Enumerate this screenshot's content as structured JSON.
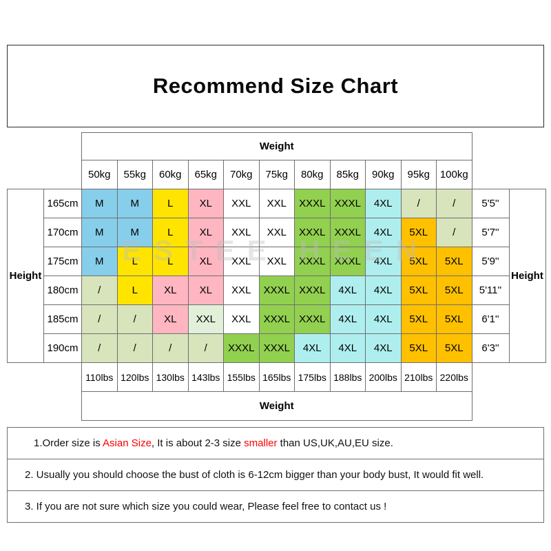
{
  "chart_data": {
    "type": "table",
    "title": "Recommend Size Chart",
    "top_header": "Weight",
    "bottom_header": "Weight",
    "left_header": "Height",
    "right_header": "Height",
    "columns_kg": [
      "50kg",
      "55kg",
      "60kg",
      "65kg",
      "70kg",
      "75kg",
      "80kg",
      "85kg",
      "90kg",
      "95kg",
      "100kg"
    ],
    "columns_lbs": [
      "110lbs",
      "120lbs",
      "130lbs",
      "143lbs",
      "155lbs",
      "165lbs",
      "175lbs",
      "188lbs",
      "200lbs",
      "210lbs",
      "220lbs"
    ],
    "rows_cm": [
      "165cm",
      "170cm",
      "175cm",
      "180cm",
      "185cm",
      "190cm"
    ],
    "rows_ft": [
      "5'5''",
      "5'7''",
      "5'9''",
      "5'11''",
      "6'1''",
      "6'3''"
    ],
    "matrix": [
      [
        [
          "M",
          "blue"
        ],
        [
          "M",
          "blue"
        ],
        [
          "L",
          "yellow"
        ],
        [
          "XL",
          "pink"
        ],
        [
          "XXL",
          "white"
        ],
        [
          "XXL",
          "white"
        ],
        [
          "XXXL",
          "green"
        ],
        [
          "XXXL",
          "green"
        ],
        [
          "4XL",
          "cyan"
        ],
        [
          "/",
          "slash"
        ],
        [
          "/",
          "slash"
        ]
      ],
      [
        [
          "M",
          "blue"
        ],
        [
          "M",
          "blue"
        ],
        [
          "L",
          "yellow"
        ],
        [
          "XL",
          "pink"
        ],
        [
          "XXL",
          "white"
        ],
        [
          "XXL",
          "white"
        ],
        [
          "XXXL",
          "green"
        ],
        [
          "XXXL",
          "green"
        ],
        [
          "4XL",
          "cyan"
        ],
        [
          "5XL",
          "orange"
        ],
        [
          "/",
          "slash"
        ]
      ],
      [
        [
          "M",
          "blue"
        ],
        [
          "L",
          "yellow"
        ],
        [
          "L",
          "yellow"
        ],
        [
          "XL",
          "pink"
        ],
        [
          "XXL",
          "white"
        ],
        [
          "XXL",
          "white"
        ],
        [
          "XXXL",
          "green"
        ],
        [
          "XXXL",
          "green"
        ],
        [
          "4XL",
          "cyan"
        ],
        [
          "5XL",
          "orange"
        ],
        [
          "5XL",
          "orange"
        ]
      ],
      [
        [
          "/",
          "slash"
        ],
        [
          "L",
          "yellow"
        ],
        [
          "XL",
          "pink"
        ],
        [
          "XL",
          "pink"
        ],
        [
          "XXL",
          "white"
        ],
        [
          "XXXL",
          "green"
        ],
        [
          "XXXL",
          "green"
        ],
        [
          "4XL",
          "cyan"
        ],
        [
          "4XL",
          "cyan"
        ],
        [
          "5XL",
          "orange"
        ],
        [
          "5XL",
          "orange"
        ]
      ],
      [
        [
          "/",
          "slash"
        ],
        [
          "/",
          "slash"
        ],
        [
          "XL",
          "pink"
        ],
        [
          "XXL",
          "mint"
        ],
        [
          "XXL",
          "white"
        ],
        [
          "XXXL",
          "green"
        ],
        [
          "XXXL",
          "green"
        ],
        [
          "4XL",
          "cyan"
        ],
        [
          "4XL",
          "cyan"
        ],
        [
          "5XL",
          "orange"
        ],
        [
          "5XL",
          "orange"
        ]
      ],
      [
        [
          "/",
          "slash"
        ],
        [
          "/",
          "slash"
        ],
        [
          "/",
          "slash"
        ],
        [
          "/",
          "slash"
        ],
        [
          "XXXL",
          "green"
        ],
        [
          "XXXL",
          "green"
        ],
        [
          "4XL",
          "cyan"
        ],
        [
          "4XL",
          "cyan"
        ],
        [
          "4XL",
          "cyan"
        ],
        [
          "5XL",
          "orange"
        ],
        [
          "5XL",
          "orange"
        ]
      ]
    ],
    "color_legend": {
      "blue": "#87CEEB",
      "yellow": "#FFE400",
      "pink": "#FFB6C1",
      "white": "#FFFFFF",
      "mint": "#E2F0D9",
      "green": "#92D050",
      "cyan": "#AFEEEE",
      "orange": "#FFC000",
      "slash": "#D8E4BC"
    }
  },
  "watermark": "ESTEE HEEN",
  "notes": [
    {
      "segments": [
        {
          "text": "1.Order size is "
        },
        {
          "text": "Asian Size",
          "red": true
        },
        {
          "text": ", It is about 2-3 size "
        },
        {
          "text": "smaller",
          "red": true
        },
        {
          "text": " than US,UK,AU,EU size."
        }
      ]
    },
    {
      "segments": [
        {
          "text": "2. Usually you should choose the bust of cloth is 6-12cm bigger than your body bust, It would fit well."
        }
      ]
    },
    {
      "segments": [
        {
          "text": "3. If you are not sure which size you could wear, Please feel free to contact us !"
        }
      ]
    }
  ]
}
